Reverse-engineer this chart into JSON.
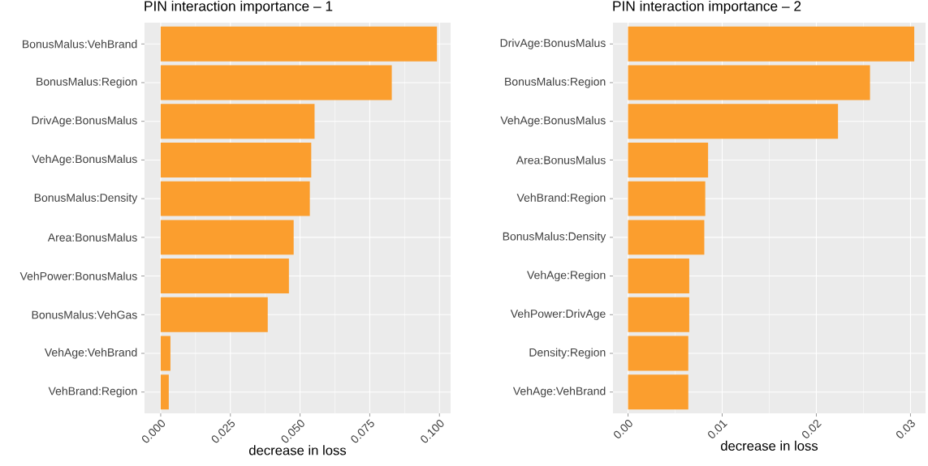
{
  "chart_data": [
    {
      "type": "bar",
      "orientation": "horizontal",
      "title": "PIN interaction importance – 1",
      "xlabel": "decrease in loss",
      "color": "#fb9e2e",
      "grid": true,
      "categories": [
        "BonusMalus:VehBrand",
        "BonusMalus:Region",
        "DrivAge:BonusMalus",
        "VehAge:BonusMalus",
        "BonusMalus:Density",
        "Area:BonusMalus",
        "VehPower:BonusMalus",
        "BonusMalus:VehGas",
        "VehAge:VehBrand",
        "VehBrand:Region"
      ],
      "values": [
        0.0991,
        0.0829,
        0.0552,
        0.054,
        0.0535,
        0.0477,
        0.046,
        0.0384,
        0.0035,
        0.0029
      ],
      "xlim": [
        -0.0058,
        0.104
      ],
      "xticks": [
        {
          "value": 0,
          "label": "0.000"
        },
        {
          "value": 0.025,
          "label": "0.025"
        },
        {
          "value": 0.05,
          "label": "0.050"
        },
        {
          "value": 0.075,
          "label": "0.075"
        },
        {
          "value": 0.1,
          "label": "0.100"
        }
      ]
    },
    {
      "type": "bar",
      "orientation": "horizontal",
      "title": "PIN interaction importance – 2",
      "xlabel": "decrease in loss",
      "color": "#fb9e2e",
      "grid": true,
      "categories": [
        "DrivAge:BonusMalus",
        "BonusMalus:Region",
        "VehAge:BonusMalus",
        "Area:BonusMalus",
        "VehBrand:Region",
        "BonusMalus:Density",
        "VehAge:Region",
        "VehPower:DrivAge",
        "Density:Region",
        "VehAge:VehBrand"
      ],
      "values": [
        0.0304,
        0.0257,
        0.0223,
        0.0085,
        0.0082,
        0.0081,
        0.0065,
        0.0065,
        0.0064,
        0.0064
      ],
      "xlim": [
        -0.0016,
        0.0316
      ],
      "xticks": [
        {
          "value": 0,
          "label": "0.00"
        },
        {
          "value": 0.01,
          "label": "0.01"
        },
        {
          "value": 0.02,
          "label": "0.02"
        },
        {
          "value": 0.03,
          "label": "0.03"
        }
      ]
    }
  ]
}
